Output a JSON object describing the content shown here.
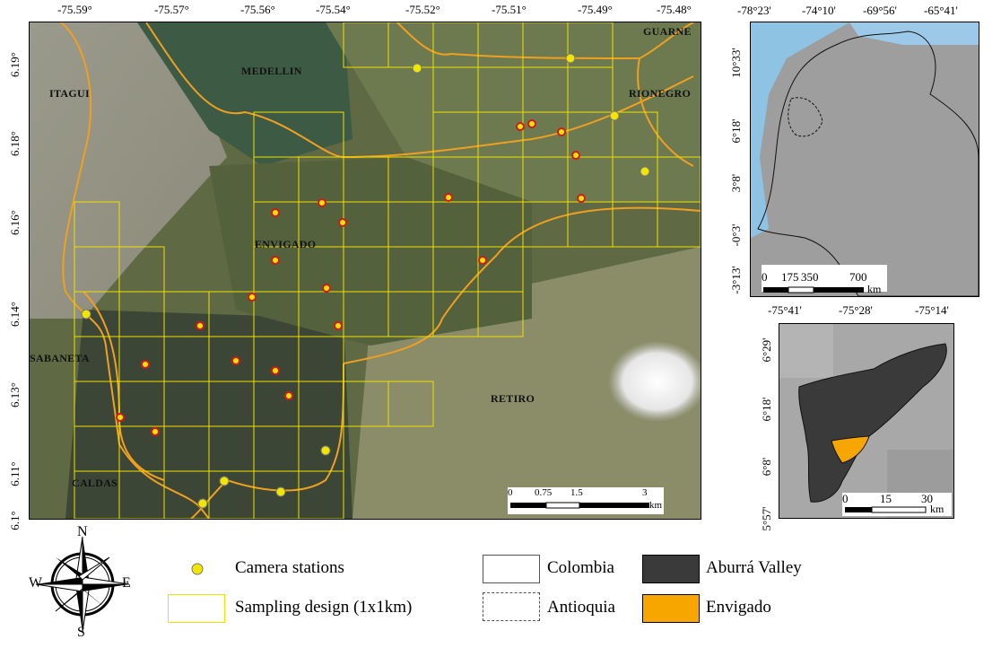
{
  "main_map": {
    "lon_ticks": [
      "-75.59°",
      "-75.57°",
      "-75.56°",
      "-75.54°",
      "-75.52°",
      "-75.51°",
      "-75.49°",
      "-75.48°"
    ],
    "lat_ticks": [
      "6.19°",
      "6.18°",
      "6.16°",
      "6.14°",
      "6.13°",
      "6.11°",
      "6.1°"
    ],
    "places": [
      "ITAGUI",
      "MEDELLIN",
      "RIONEGRO",
      "GUARNE",
      "ENVIGADO",
      "SABANETA",
      "RETIRO",
      "CALDAS"
    ],
    "scale": {
      "labels": [
        "0",
        "0.75",
        "1.5",
        "3"
      ],
      "unit": "km"
    },
    "colors": {
      "sampling_grid": "#f0e000",
      "boundary": "#f0a020",
      "camera": "#f2e600",
      "camera_ring": "#d11a1a"
    }
  },
  "colombia_map": {
    "lon_ticks": [
      "-78°23'",
      "-74°10'",
      "-69°56'",
      "-65°41'"
    ],
    "lat_ticks": [
      "10°33'",
      "6°18'",
      "3°8'",
      "-0°3'",
      "-3°13'"
    ],
    "scale": {
      "labels": [
        "0",
        "175",
        "350",
        "700"
      ],
      "unit": "km"
    }
  },
  "valley_map": {
    "lon_ticks": [
      "-75°41'",
      "-75°28'",
      "-75°14'"
    ],
    "lat_ticks": [
      "6°29'",
      "6°18'",
      "6°8'",
      "5°57'"
    ],
    "scale": {
      "labels": [
        "0",
        "15",
        "30"
      ],
      "unit": "km"
    }
  },
  "north_arrow": {
    "n": "N",
    "s": "S",
    "e": "E",
    "w": "W"
  },
  "legend": {
    "camera_stations": "Camera stations",
    "sampling_design": "Sampling design (1x1km)",
    "colombia": "Colombia",
    "antioquia": "Antioquia",
    "aburra_valley": "Aburrá Valley",
    "envigado": "Envigado",
    "colors": {
      "aburra": "#3a3a3a",
      "envigado": "#f7a600",
      "sampling": "#f0e000"
    }
  }
}
